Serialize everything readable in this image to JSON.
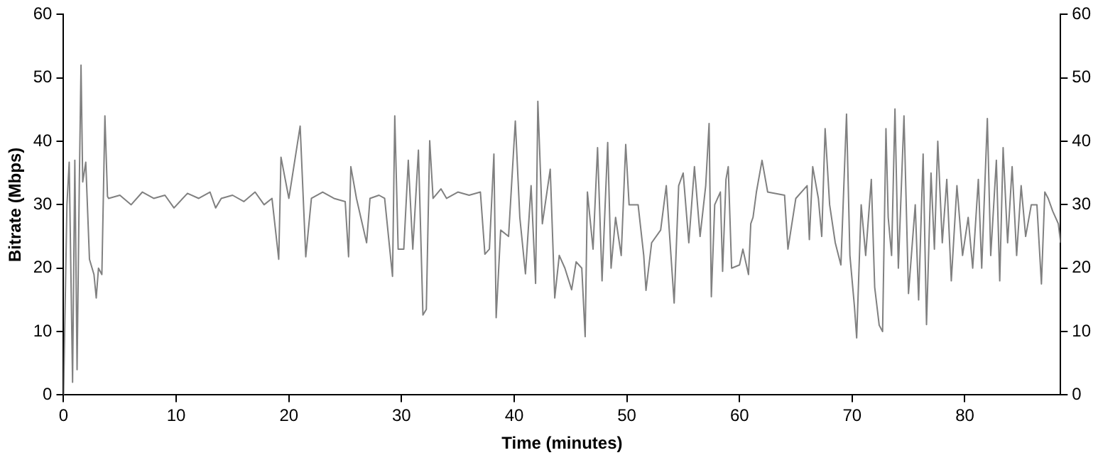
{
  "chart_data": {
    "type": "line",
    "xlabel": "Time (minutes)",
    "ylabel": "Bitrate (Mbps)",
    "xlim": [
      0,
      88.5
    ],
    "xticks": [
      0,
      10,
      20,
      30,
      40,
      50,
      60,
      70,
      80
    ],
    "ylim": [
      0,
      60
    ],
    "yticks": [
      0,
      10,
      20,
      30,
      40,
      50,
      60
    ],
    "y2lim": [
      0,
      60
    ],
    "y2ticks": [
      0,
      10,
      20,
      30,
      40,
      50,
      60
    ],
    "grid": false,
    "legend": false,
    "marker": "none",
    "line_style": "solid",
    "series": [
      {
        "color": "#808080",
        "x": [
          0,
          0.3,
          0.5,
          0.8,
          1.0,
          1.2,
          1.4,
          1.55,
          1.7,
          1.97,
          2.3,
          2.7,
          2.9,
          3.1,
          3.4,
          3.67,
          3.9,
          4,
          5,
          6,
          7,
          8,
          9,
          9.8,
          11,
          12,
          13,
          13.5,
          14,
          15,
          16,
          17,
          17.8,
          18.5,
          19.1,
          19.3,
          20,
          21,
          21.5,
          22,
          23,
          24,
          25,
          25.3,
          25.5,
          26,
          26.9,
          27.2,
          28,
          28.5,
          29.2,
          29.4,
          29.7,
          30.2,
          30.6,
          31,
          31.5,
          31.9,
          32.2,
          32.5,
          32.8,
          33.5,
          34,
          35,
          36,
          37,
          37.4,
          37.8,
          38.2,
          38.4,
          38.8,
          39.5,
          40.1,
          40.5,
          41,
          41.5,
          41.9,
          42.1,
          42.5,
          43.2,
          43.6,
          44,
          44.5,
          45.1,
          45.5,
          46,
          46.3,
          46.5,
          47,
          47.4,
          47.8,
          48.3,
          48.6,
          49,
          49.5,
          49.9,
          50.2,
          51,
          51.5,
          51.7,
          52.2,
          53,
          53.5,
          54.2,
          54.6,
          55,
          55.5,
          56,
          56.5,
          57,
          57.3,
          57.5,
          57.8,
          58.3,
          58.5,
          58.8,
          59,
          59.3,
          60,
          60.3,
          60.8,
          61,
          61.2,
          61.5,
          62,
          62.5,
          64,
          64.3,
          65,
          66,
          66.2,
          66.5,
          67,
          67.3,
          67.6,
          68,
          68.5,
          69,
          69.5,
          69.8,
          70.2,
          70.4,
          70.8,
          71.2,
          71.7,
          72,
          72.4,
          72.7,
          73,
          73.2,
          73.5,
          73.8,
          74.1,
          74.6,
          75,
          75.6,
          75.9,
          76.3,
          76.6,
          77,
          77.3,
          77.6,
          78,
          78.4,
          78.8,
          79.3,
          79.8,
          80.3,
          80.7,
          81.2,
          81.5,
          82,
          82.3,
          82.8,
          83.1,
          83.4,
          83.8,
          84.2,
          84.6,
          85,
          85.4,
          85.9,
          86.4,
          86.8,
          87.1,
          87.4,
          87.8,
          88.3,
          88.5
        ],
        "values": [
          0,
          30,
          36.7,
          2,
          37,
          4,
          33.6,
          52,
          33.6,
          36.7,
          21.4,
          19,
          15.3,
          20,
          19,
          44,
          31.3,
          31,
          31.5,
          30,
          32,
          31,
          31.5,
          29.5,
          31.8,
          31,
          32,
          29.5,
          31,
          31.5,
          30.5,
          32,
          30,
          31,
          21.4,
          37.5,
          31,
          42.4,
          21.8,
          31,
          32,
          31,
          30.5,
          21.8,
          36,
          31,
          24,
          31,
          31.5,
          31,
          18.7,
          44,
          23,
          23,
          37,
          23,
          38.6,
          12.6,
          13.5,
          40.1,
          31,
          32.5,
          31,
          32,
          31.5,
          32,
          22.2,
          23,
          38,
          12.2,
          26,
          25,
          43.2,
          28,
          19.1,
          33,
          17.6,
          46.3,
          27,
          35.6,
          15.3,
          22,
          20,
          16.6,
          21,
          20,
          9.2,
          32,
          23,
          39,
          18,
          39.8,
          20,
          28,
          22,
          39.5,
          30,
          30,
          22,
          16.5,
          24,
          26,
          33,
          14.5,
          33,
          35,
          24,
          36,
          25,
          33,
          42.8,
          15.5,
          30,
          32,
          19.5,
          34,
          36,
          20,
          20.5,
          23,
          19,
          27,
          28,
          32,
          37,
          32,
          31.5,
          23,
          31,
          33,
          24.5,
          36,
          31,
          25,
          42,
          30,
          24,
          20.5,
          44.3,
          22,
          14,
          9,
          30,
          22,
          34,
          17,
          11,
          10,
          42,
          28,
          22,
          45.1,
          20,
          44,
          16,
          30,
          15,
          38,
          11.1,
          35,
          23,
          40,
          24,
          34,
          18,
          33,
          22,
          28,
          20,
          34,
          20,
          43.6,
          22,
          37,
          18,
          39,
          24,
          36,
          22,
          33,
          25,
          30,
          30,
          17.5,
          32,
          31,
          29,
          27,
          24
        ]
      }
    ]
  }
}
